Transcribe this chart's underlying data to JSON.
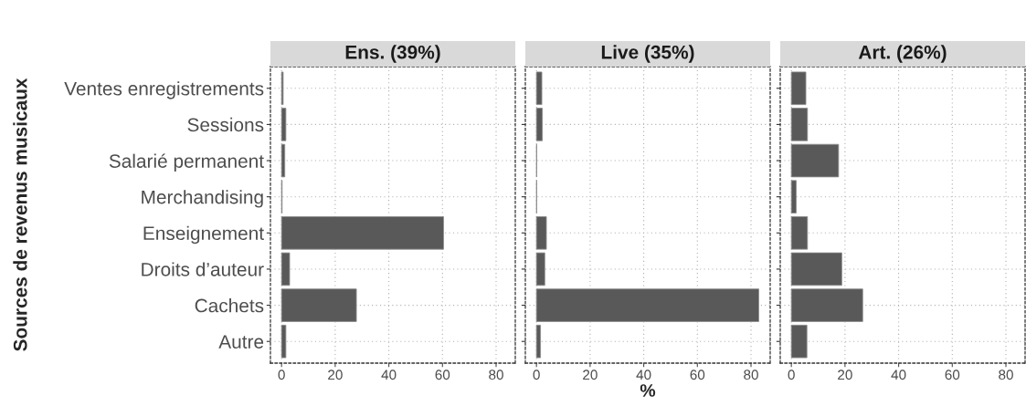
{
  "chart_data": [
    {
      "type": "bar",
      "orientation": "horizontal",
      "title": "Ens. (39%)",
      "ylabel": "Sources de revenus musicaux",
      "categories": [
        "Ventes enregistrements",
        "Sessions",
        "Salarié permanent",
        "Merchandising",
        "Enseignement",
        "Droits d’auteur",
        "Cachets",
        "Autre"
      ],
      "values": [
        0.6,
        1.6,
        1.2,
        0.2,
        60.4,
        3.0,
        27.9,
        1.6
      ],
      "color": "#595959",
      "xlim": [
        -4.15,
        87.15
      ],
      "xticks": [
        0,
        20,
        40,
        60,
        80
      ],
      "grid": true
    },
    {
      "type": "bar",
      "orientation": "horizontal",
      "title": "Live (35%)",
      "xlabel": "%",
      "categories": [
        null,
        null,
        null,
        null,
        null,
        null,
        null,
        null
      ],
      "values": [
        2.0,
        2.2,
        0.1,
        0.1,
        3.7,
        3.1,
        82.9,
        1.5
      ],
      "color": "#595959",
      "xlim": [
        -4.15,
        87.15
      ],
      "xticks": [
        0,
        20,
        40,
        60,
        80
      ],
      "grid": true,
      "tick_labels": "x"
    },
    {
      "type": "bar",
      "orientation": "horizontal",
      "title": "Art. (26%)",
      "categories": [
        null,
        null,
        null,
        null,
        null,
        null,
        null,
        null
      ],
      "values": [
        5.4,
        6.0,
        17.6,
        1.8,
        6.0,
        18.8,
        26.6,
        5.8
      ],
      "color": "#595959",
      "xlim": [
        -4.15,
        87.15
      ],
      "xticks": [
        0,
        20,
        40,
        60,
        80
      ],
      "grid": true,
      "tick_labels": "x"
    }
  ]
}
